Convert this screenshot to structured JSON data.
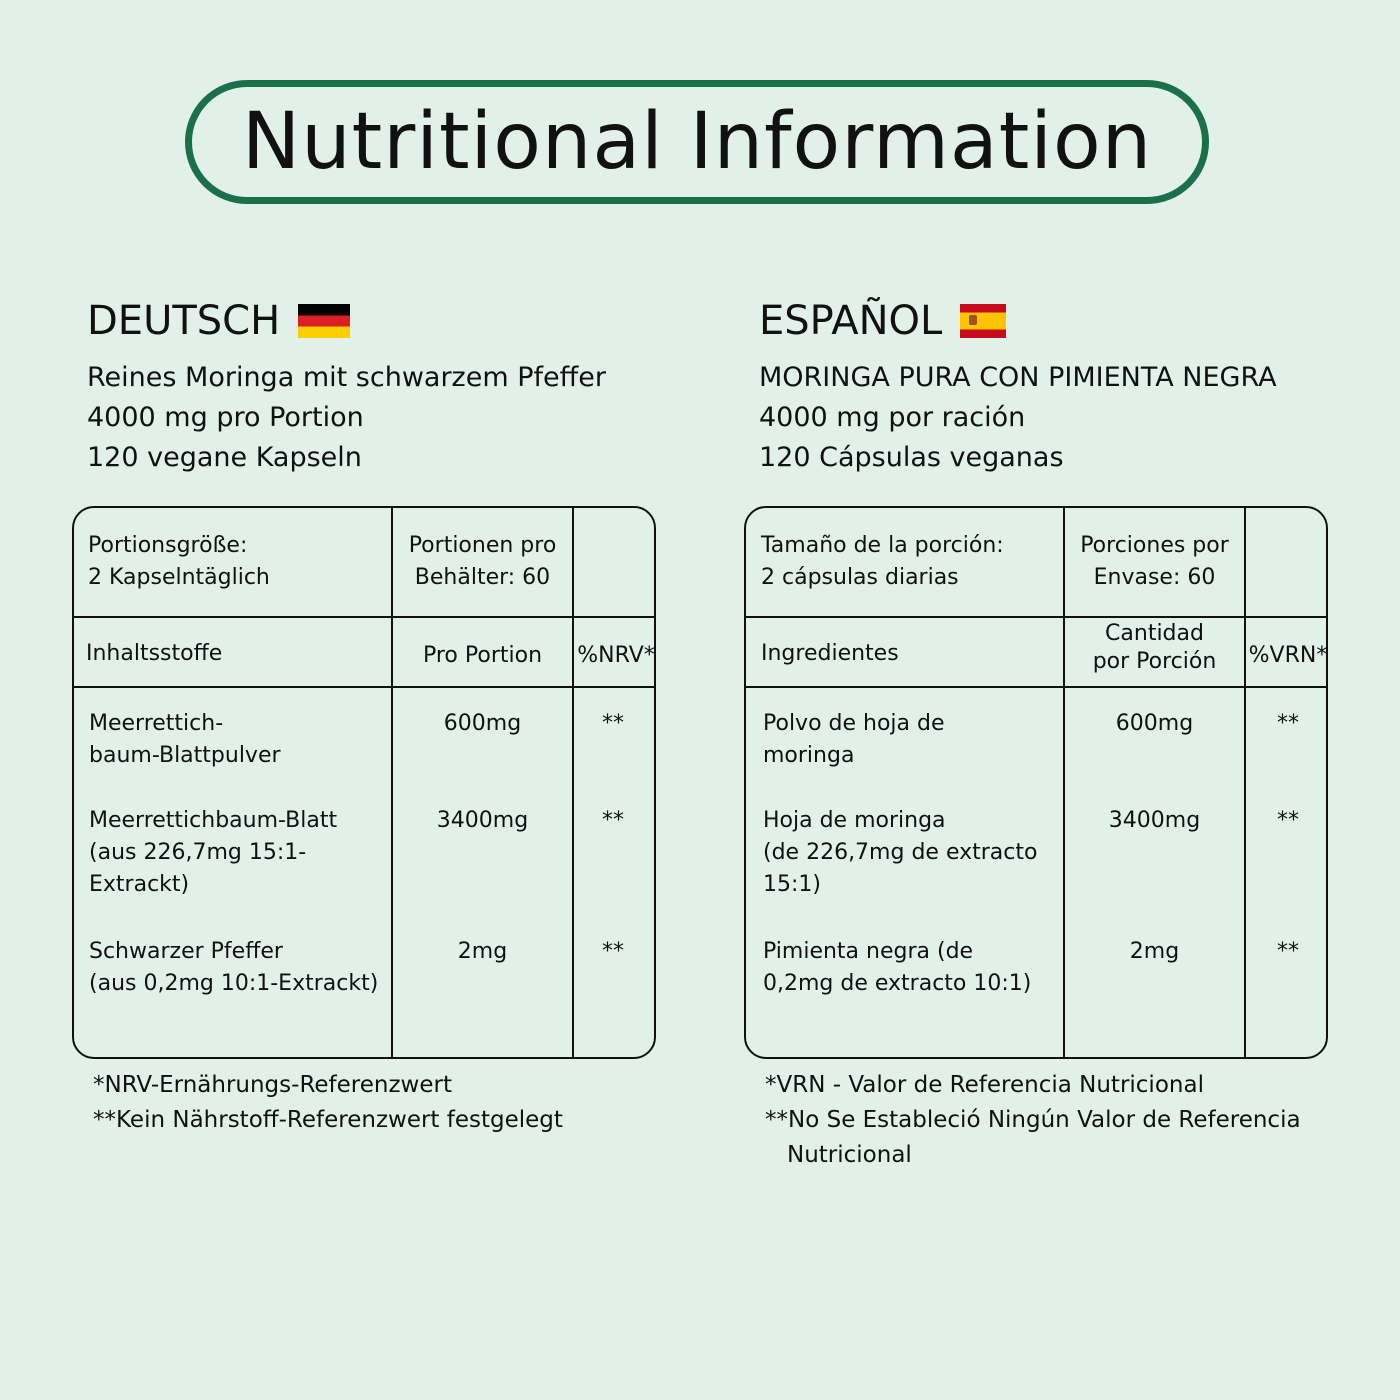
{
  "title": "Nutritional Information",
  "colors": {
    "background": "#e1f1ea",
    "border": "#1a7048"
  },
  "de": {
    "heading": "DEUTSCH",
    "flag": "germany-flag",
    "lines": [
      "Reines Moringa mit schwarzem Pfeffer",
      "4000 mg pro Portion",
      "120 vegane Kapseln"
    ],
    "serving_size": [
      "Portionsgröße:",
      "2 Kapselntäglich"
    ],
    "servings_per": [
      "Portionen pro",
      "Behälter: 60"
    ],
    "headers": {
      "ingredient": "Inhaltsstoffe",
      "amount": "Pro Portion",
      "ref": "%NRV*"
    },
    "rows": [
      {
        "name": [
          "Meerrettich-",
          "baum-Blattpulver"
        ],
        "amount": "600mg",
        "ref": "**"
      },
      {
        "name": [
          "Meerrettichbaum-Blatt",
          "(aus 226,7mg 15:1-",
          "Extrackt)"
        ],
        "amount": "3400mg",
        "ref": "**"
      },
      {
        "name": [
          "Schwarzer Pfeffer",
          "(aus 0,2mg 10:1-Extrackt)"
        ],
        "amount": "2mg",
        "ref": "**"
      }
    ],
    "footnotes": [
      "*NRV-Ernährungs-Referenzwert",
      "**Kein Nährstoff-Referenzwert festgelegt"
    ]
  },
  "es": {
    "heading": "ESPAÑOL",
    "flag": "spain-flag",
    "lines": [
      "MORINGA PURA CON PIMIENTA NEGRA",
      "4000 mg por ración",
      "120 Cápsulas veganas"
    ],
    "serving_size": [
      "Tamaño de la porción:",
      "2 cápsulas diarias"
    ],
    "servings_per": [
      "Porciones por",
      "Envase: 60"
    ],
    "headers": {
      "ingredient": "Ingredientes",
      "amount": [
        "Cantidad",
        "por Porción"
      ],
      "ref": "%VRN*"
    },
    "rows": [
      {
        "name": [
          "Polvo de hoja de",
          "moringa"
        ],
        "amount": "600mg",
        "ref": "**"
      },
      {
        "name": [
          "Hoja de moringa",
          "(de 226,7mg de extracto",
          "15:1)"
        ],
        "amount": "3400mg",
        "ref": "**"
      },
      {
        "name": [
          "Pimienta negra (de",
          "0,2mg de extracto 10:1)"
        ],
        "amount": "2mg",
        "ref": "**"
      }
    ],
    "footnotes": [
      "*VRN - Valor de Referencia Nutricional",
      "**No Se Estableció Ningún Valor de Referencia",
      "Nutricional"
    ]
  }
}
